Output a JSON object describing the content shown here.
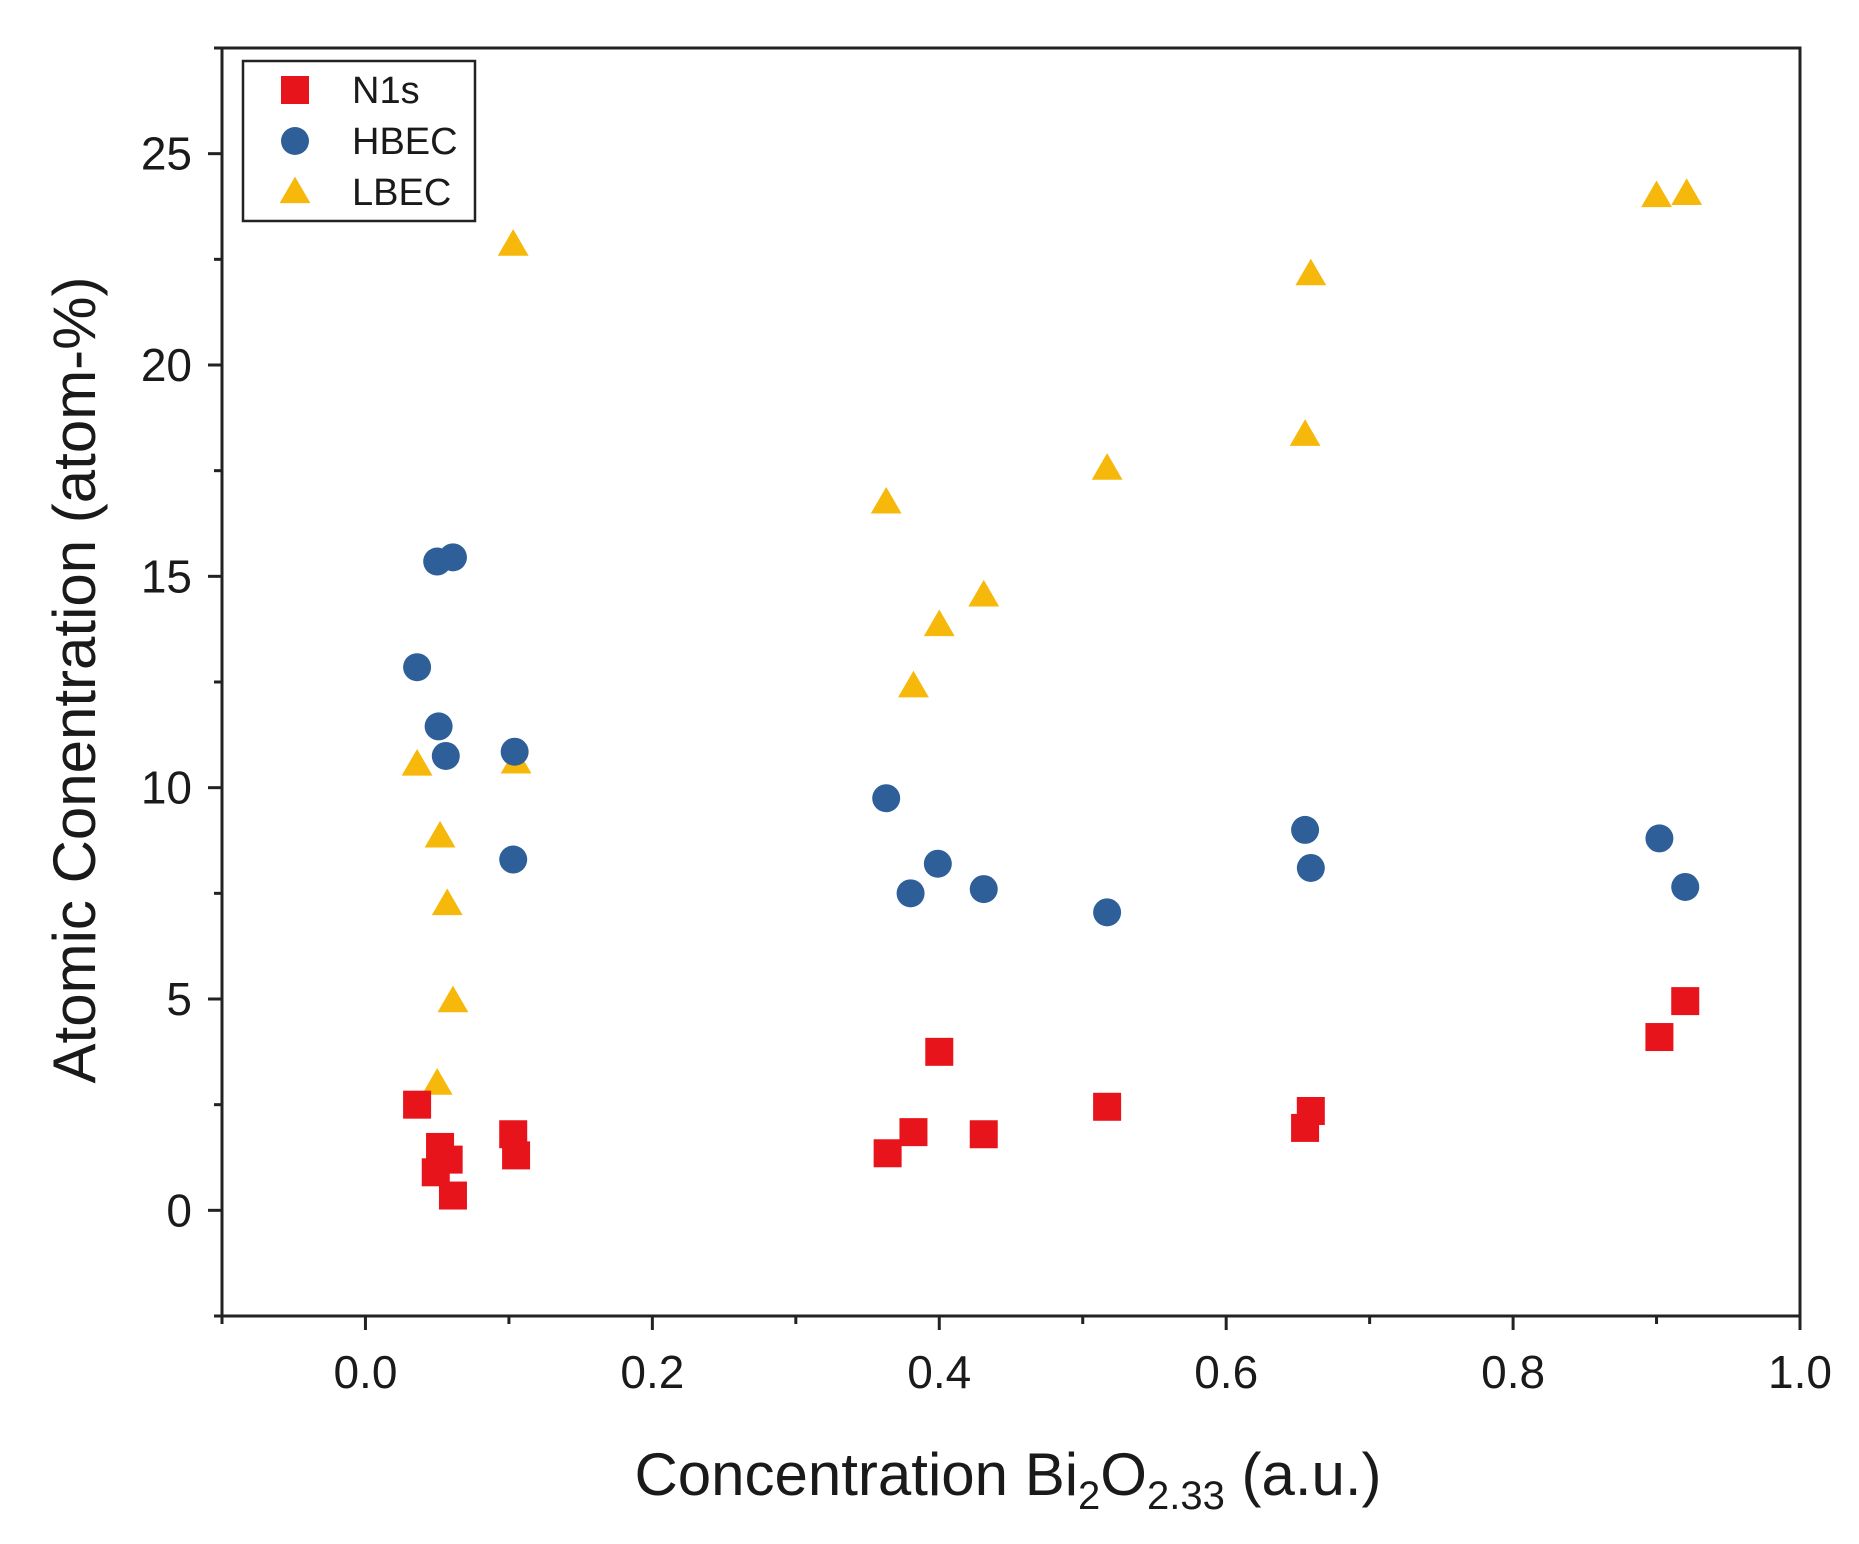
{
  "chart_data": {
    "type": "scatter",
    "title": "",
    "xlabel": {
      "prefix": "Concentration  Bi",
      "sub1": "2",
      "mid": "O",
      "sub2": "2.33",
      "suffix": " (a.u.)"
    },
    "ylabel": "Atomic Conentration (atom-%)",
    "xlim": [
      -0.1,
      1.0
    ],
    "ylim": [
      -2.5,
      27.5
    ],
    "x_ticks": [
      0.0,
      0.2,
      0.4,
      0.6,
      0.8,
      1.0
    ],
    "x_tick_labels": [
      "0.0",
      "0.2",
      "0.4",
      "0.6",
      "0.8",
      "1.0"
    ],
    "y_ticks": [
      0,
      5,
      10,
      15,
      20,
      25
    ],
    "y_tick_labels": [
      "0",
      "5",
      "10",
      "15",
      "20",
      "25"
    ],
    "grid": false,
    "legend_position": "top-left",
    "series": [
      {
        "name": "N1s",
        "marker": "square",
        "color": "#e8141c",
        "points": [
          [
            0.036,
            2.5
          ],
          [
            0.049,
            0.9
          ],
          [
            0.052,
            1.5
          ],
          [
            0.058,
            1.2
          ],
          [
            0.061,
            0.35
          ],
          [
            0.103,
            1.8
          ],
          [
            0.105,
            1.3
          ],
          [
            0.364,
            1.35
          ],
          [
            0.382,
            1.85
          ],
          [
            0.4,
            3.75
          ],
          [
            0.431,
            1.8
          ],
          [
            0.517,
            2.45
          ],
          [
            0.655,
            1.95
          ],
          [
            0.659,
            2.35
          ],
          [
            0.902,
            4.1
          ],
          [
            0.92,
            4.95
          ]
        ]
      },
      {
        "name": "HBEC",
        "marker": "circle",
        "color": "#2f5f99",
        "points": [
          [
            0.036,
            12.85
          ],
          [
            0.05,
            15.35
          ],
          [
            0.051,
            11.45
          ],
          [
            0.056,
            10.75
          ],
          [
            0.061,
            15.45
          ],
          [
            0.103,
            8.3
          ],
          [
            0.104,
            10.85
          ],
          [
            0.363,
            9.75
          ],
          [
            0.38,
            7.5
          ],
          [
            0.399,
            8.2
          ],
          [
            0.431,
            7.6
          ],
          [
            0.517,
            7.05
          ],
          [
            0.655,
            9.0
          ],
          [
            0.659,
            8.1
          ],
          [
            0.902,
            8.8
          ],
          [
            0.92,
            7.65
          ]
        ]
      },
      {
        "name": "LBEC",
        "marker": "triangle",
        "color": "#f5b80b",
        "points": [
          [
            0.036,
            10.55
          ],
          [
            0.05,
            3.0
          ],
          [
            0.052,
            8.85
          ],
          [
            0.057,
            7.25
          ],
          [
            0.061,
            4.95
          ],
          [
            0.103,
            22.85
          ],
          [
            0.105,
            10.6
          ],
          [
            0.363,
            16.75
          ],
          [
            0.382,
            12.4
          ],
          [
            0.4,
            13.85
          ],
          [
            0.431,
            14.55
          ],
          [
            0.517,
            17.55
          ],
          [
            0.655,
            18.35
          ],
          [
            0.659,
            22.15
          ],
          [
            0.9,
            24.0
          ],
          [
            0.921,
            24.05
          ]
        ]
      }
    ]
  }
}
